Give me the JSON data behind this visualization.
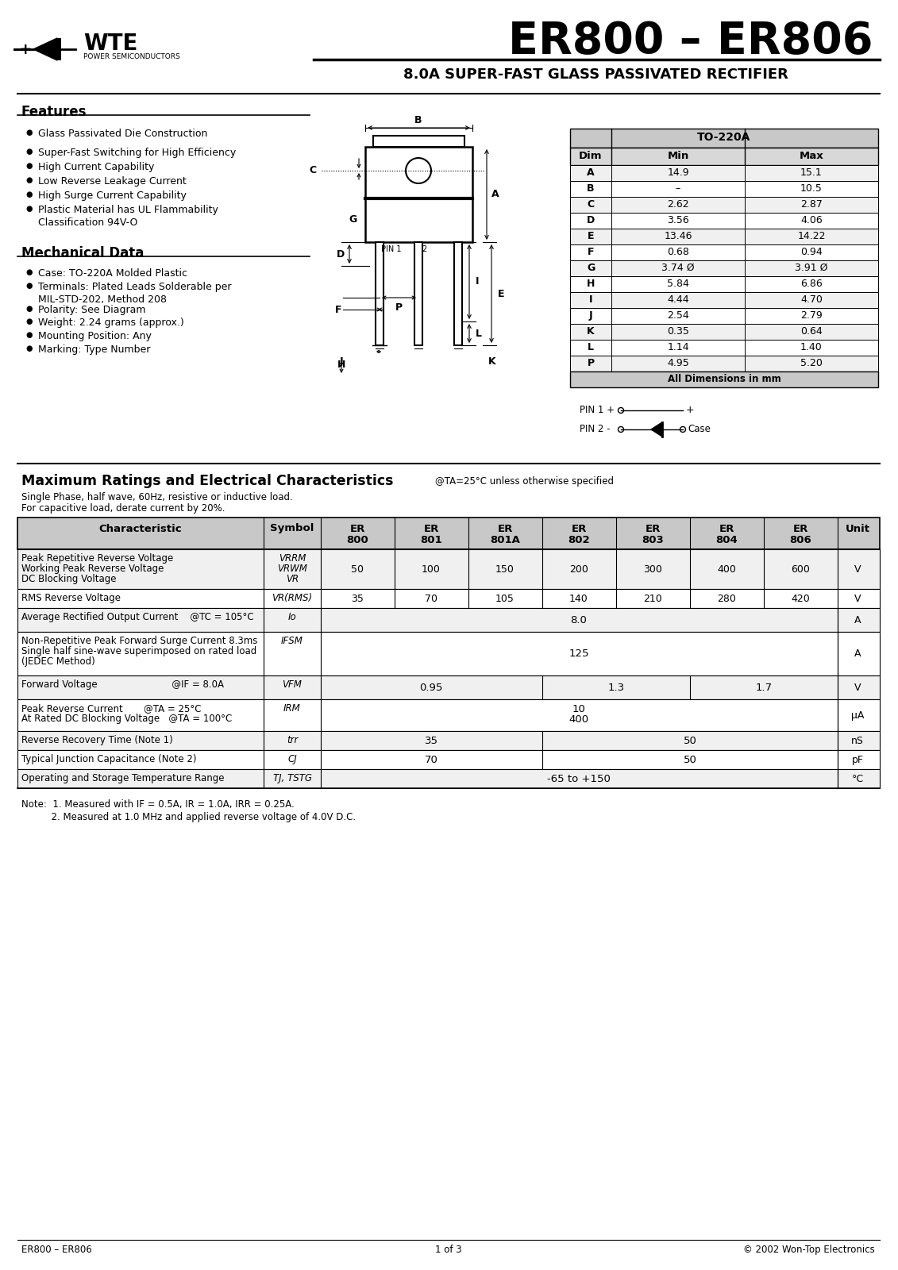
{
  "title": "ER800 – ER806",
  "subtitle": "8.0A SUPER-FAST GLASS PASSIVATED RECTIFIER",
  "company": "WTE",
  "company_sub": "POWER SEMICONDUCTORS",
  "features_title": "Features",
  "features": [
    "Glass Passivated Die Construction",
    "Super-Fast Switching for High Efficiency",
    "High Current Capability",
    "Low Reverse Leakage Current",
    "High Surge Current Capability",
    "Plastic Material has UL Flammability\nClassification 94V-O"
  ],
  "mech_title": "Mechanical Data",
  "mech_items": [
    "Case: TO-220A Molded Plastic",
    "Terminals: Plated Leads Solderable per\nMIL-STD-202, Method 208",
    "Polarity: See Diagram",
    "Weight: 2.24 grams (approx.)",
    "Mounting Position: Any",
    "Marking: Type Number"
  ],
  "dim_table_title": "TO-220A",
  "dim_headers": [
    "Dim",
    "Min",
    "Max"
  ],
  "dim_rows": [
    [
      "A",
      "14.9",
      "15.1"
    ],
    [
      "B",
      "–",
      "10.5"
    ],
    [
      "C",
      "2.62",
      "2.87"
    ],
    [
      "D",
      "3.56",
      "4.06"
    ],
    [
      "E",
      "13.46",
      "14.22"
    ],
    [
      "F",
      "0.68",
      "0.94"
    ],
    [
      "G",
      "3.74 Ø",
      "3.91 Ø"
    ],
    [
      "H",
      "5.84",
      "6.86"
    ],
    [
      "I",
      "4.44",
      "4.70"
    ],
    [
      "J",
      "2.54",
      "2.79"
    ],
    [
      "K",
      "0.35",
      "0.64"
    ],
    [
      "L",
      "1.14",
      "1.40"
    ],
    [
      "P",
      "4.95",
      "5.20"
    ]
  ],
  "dim_footer": "All Dimensions in mm",
  "ratings_title": "Maximum Ratings and Electrical Characteristics",
  "ratings_subtitle": "@TA=25°C unless otherwise specified",
  "ratings_note1": "Single Phase, half wave, 60Hz, resistive or inductive load.",
  "ratings_note2": "For capacitive load, derate current by 20%.",
  "table_col_headers": [
    "Characteristic",
    "Symbol",
    "ER\n800",
    "ER\n801",
    "ER\n801A",
    "ER\n802",
    "ER\n803",
    "ER\n804",
    "ER\n806",
    "Unit"
  ],
  "notes": [
    "Note:  1. Measured with IF = 0.5A, IR = 1.0A, IRR = 0.25A.",
    "          2. Measured at 1.0 MHz and applied reverse voltage of 4.0V D.C."
  ],
  "footer_left": "ER800 – ER806",
  "footer_center": "1 of 3",
  "footer_right": "© 2002 Won-Top Electronics",
  "bg_color": "#ffffff"
}
